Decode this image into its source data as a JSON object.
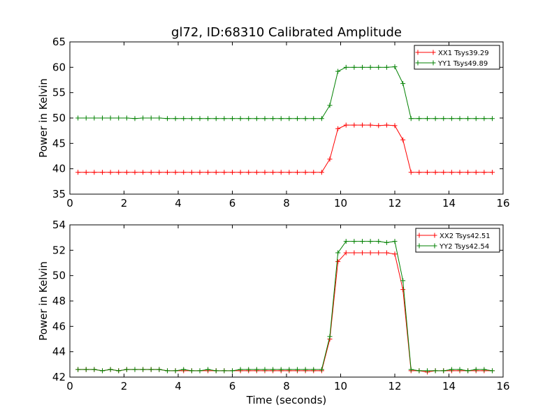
{
  "chart_data": [
    {
      "type": "line",
      "title": "gl72, ID:68310 Calibrated Amplitude",
      "xlabel": "",
      "ylabel": "Power in Kelvin",
      "xlim": [
        0,
        16
      ],
      "ylim": [
        35,
        65
      ],
      "xticks": [
        "0",
        "2",
        "4",
        "6",
        "8",
        "10",
        "12",
        "14",
        "16"
      ],
      "yticks": [
        "35",
        "40",
        "45",
        "50",
        "55",
        "60",
        "65"
      ],
      "legend_position": "top-right",
      "grid": false,
      "x": [
        0.3,
        0.6,
        0.9,
        1.2,
        1.5,
        1.8,
        2.1,
        2.4,
        2.7,
        3.0,
        3.3,
        3.6,
        3.9,
        4.2,
        4.5,
        4.8,
        5.1,
        5.4,
        5.7,
        6.0,
        6.3,
        6.6,
        6.9,
        7.2,
        7.5,
        7.8,
        8.1,
        8.4,
        8.7,
        9.0,
        9.3,
        9.6,
        9.9,
        10.2,
        10.5,
        10.8,
        11.1,
        11.4,
        11.7,
        12.0,
        12.3,
        12.6,
        12.9,
        13.2,
        13.5,
        13.8,
        14.1,
        14.4,
        14.7,
        15.0,
        15.3,
        15.6
      ],
      "series": [
        {
          "name": "XX1 Tsys39.29",
          "color": "#ff0000",
          "values": [
            39.3,
            39.3,
            39.3,
            39.3,
            39.3,
            39.3,
            39.3,
            39.3,
            39.3,
            39.3,
            39.3,
            39.3,
            39.3,
            39.3,
            39.3,
            39.3,
            39.3,
            39.3,
            39.3,
            39.3,
            39.3,
            39.3,
            39.3,
            39.3,
            39.3,
            39.3,
            39.3,
            39.3,
            39.3,
            39.3,
            39.3,
            41.9,
            47.9,
            48.6,
            48.6,
            48.6,
            48.6,
            48.5,
            48.6,
            48.5,
            45.7,
            39.3,
            39.3,
            39.3,
            39.3,
            39.3,
            39.3,
            39.3,
            39.3,
            39.3,
            39.3,
            39.3
          ]
        },
        {
          "name": "YY1 Tsys49.89",
          "color": "#008000",
          "values": [
            50.0,
            50.0,
            50.0,
            50.0,
            50.0,
            50.0,
            50.0,
            49.9,
            50.0,
            50.0,
            50.0,
            49.9,
            49.9,
            49.9,
            49.9,
            49.9,
            49.9,
            49.9,
            49.9,
            49.9,
            49.9,
            49.9,
            49.9,
            49.9,
            49.9,
            49.9,
            49.9,
            49.9,
            49.9,
            49.9,
            49.9,
            52.5,
            59.2,
            60.0,
            60.0,
            60.0,
            60.0,
            60.0,
            60.0,
            60.1,
            56.8,
            49.9,
            49.9,
            49.9,
            49.9,
            49.9,
            49.9,
            49.9,
            49.9,
            49.9,
            49.9,
            49.9
          ]
        }
      ]
    },
    {
      "type": "line",
      "title": "",
      "xlabel": "Time (seconds)",
      "ylabel": "Power in Kelvin",
      "xlim": [
        0,
        16
      ],
      "ylim": [
        42,
        54
      ],
      "xticks": [
        "0",
        "2",
        "4",
        "6",
        "8",
        "10",
        "12",
        "14",
        "16"
      ],
      "yticks": [
        "42",
        "44",
        "46",
        "48",
        "50",
        "52",
        "54"
      ],
      "legend_position": "top-right",
      "grid": false,
      "x": [
        0.3,
        0.6,
        0.9,
        1.2,
        1.5,
        1.8,
        2.1,
        2.4,
        2.7,
        3.0,
        3.3,
        3.6,
        3.9,
        4.2,
        4.5,
        4.8,
        5.1,
        5.4,
        5.7,
        6.0,
        6.3,
        6.6,
        6.9,
        7.2,
        7.5,
        7.8,
        8.1,
        8.4,
        8.7,
        9.0,
        9.3,
        9.6,
        9.9,
        10.2,
        10.5,
        10.8,
        11.1,
        11.4,
        11.7,
        12.0,
        12.3,
        12.6,
        12.9,
        13.2,
        13.5,
        13.8,
        14.1,
        14.4,
        14.7,
        15.0,
        15.3,
        15.6
      ],
      "series": [
        {
          "name": "XX2 Tsys42.51",
          "color": "#ff0000",
          "values": [
            42.6,
            42.6,
            42.6,
            42.5,
            42.6,
            42.5,
            42.6,
            42.6,
            42.6,
            42.6,
            42.6,
            42.5,
            42.5,
            42.5,
            42.5,
            42.5,
            42.5,
            42.5,
            42.5,
            42.5,
            42.5,
            42.5,
            42.5,
            42.5,
            42.5,
            42.5,
            42.5,
            42.5,
            42.5,
            42.5,
            42.5,
            45.0,
            51.1,
            51.8,
            51.8,
            51.8,
            51.8,
            51.8,
            51.8,
            51.7,
            48.9,
            42.5,
            42.5,
            42.4,
            42.5,
            42.5,
            42.5,
            42.5,
            42.5,
            42.5,
            42.5,
            42.5
          ]
        },
        {
          "name": "YY2 Tsys42.54",
          "color": "#008000",
          "values": [
            42.6,
            42.6,
            42.6,
            42.5,
            42.6,
            42.5,
            42.6,
            42.6,
            42.6,
            42.6,
            42.6,
            42.5,
            42.5,
            42.6,
            42.5,
            42.5,
            42.6,
            42.5,
            42.5,
            42.5,
            42.6,
            42.6,
            42.6,
            42.6,
            42.6,
            42.6,
            42.6,
            42.6,
            42.6,
            42.6,
            42.6,
            45.2,
            51.8,
            52.7,
            52.7,
            52.7,
            52.7,
            52.7,
            52.6,
            52.7,
            49.6,
            42.6,
            42.5,
            42.5,
            42.5,
            42.5,
            42.6,
            42.6,
            42.5,
            42.6,
            42.6,
            42.5
          ]
        }
      ]
    }
  ]
}
